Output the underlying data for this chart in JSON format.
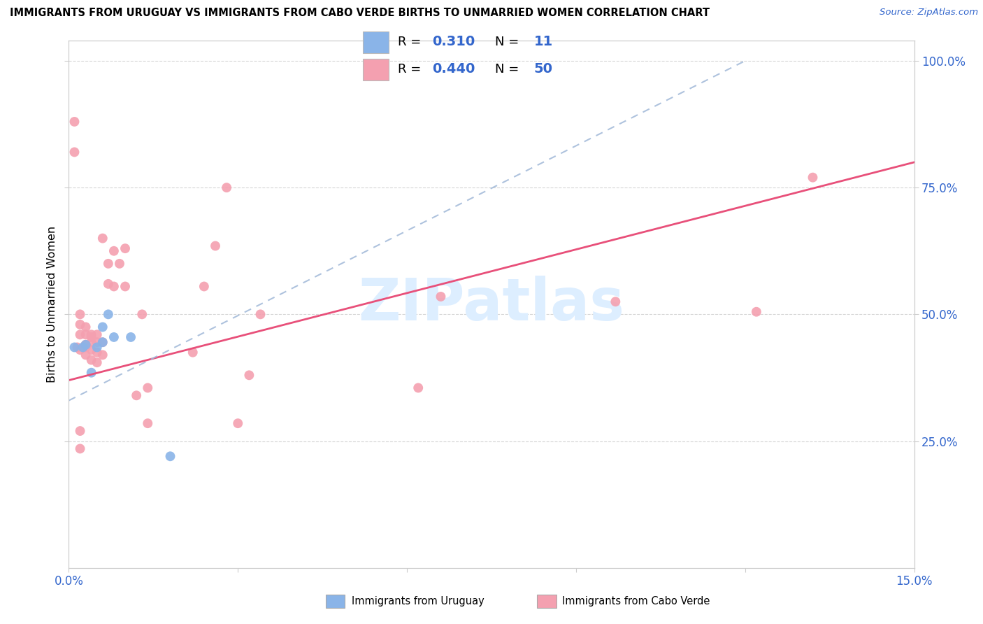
{
  "title": "IMMIGRANTS FROM URUGUAY VS IMMIGRANTS FROM CABO VERDE BIRTHS TO UNMARRIED WOMEN CORRELATION CHART",
  "source_text": "Source: ZipAtlas.com",
  "ylabel": "Births to Unmarried Women",
  "xmin": 0.0,
  "xmax": 0.15,
  "ymin": 0.0,
  "ymax": 1.04,
  "ytick_values": [
    0.25,
    0.5,
    0.75,
    1.0
  ],
  "ytick_labels": [
    "25.0%",
    "50.0%",
    "75.0%",
    "100.0%"
  ],
  "xtick_values": [
    0.0,
    0.03,
    0.06,
    0.09,
    0.12,
    0.15
  ],
  "xtick_labels": [
    "0.0%",
    "",
    "",
    "",
    "",
    "15.0%"
  ],
  "color_uruguay": "#8ab4e8",
  "color_caboverde": "#f4a0b0",
  "color_trend_caboverde": "#e8507a",
  "color_trend_uruguay": "#a0b8d8",
  "watermark_color": "#ddeeff",
  "uruguay_points": [
    [
      0.001,
      0.435
    ],
    [
      0.0025,
      0.435
    ],
    [
      0.003,
      0.44
    ],
    [
      0.004,
      0.385
    ],
    [
      0.005,
      0.435
    ],
    [
      0.006,
      0.475
    ],
    [
      0.006,
      0.445
    ],
    [
      0.007,
      0.5
    ],
    [
      0.008,
      0.455
    ],
    [
      0.011,
      0.455
    ],
    [
      0.018,
      0.22
    ]
  ],
  "caboverde_points": [
    [
      0.001,
      0.88
    ],
    [
      0.001,
      0.82
    ],
    [
      0.0015,
      0.435
    ],
    [
      0.002,
      0.43
    ],
    [
      0.002,
      0.46
    ],
    [
      0.002,
      0.48
    ],
    [
      0.002,
      0.5
    ],
    [
      0.002,
      0.27
    ],
    [
      0.002,
      0.235
    ],
    [
      0.003,
      0.42
    ],
    [
      0.003,
      0.44
    ],
    [
      0.003,
      0.46
    ],
    [
      0.003,
      0.475
    ],
    [
      0.003,
      0.435
    ],
    [
      0.003,
      0.44
    ],
    [
      0.004,
      0.41
    ],
    [
      0.004,
      0.43
    ],
    [
      0.004,
      0.445
    ],
    [
      0.004,
      0.455
    ],
    [
      0.004,
      0.46
    ],
    [
      0.005,
      0.405
    ],
    [
      0.005,
      0.425
    ],
    [
      0.005,
      0.445
    ],
    [
      0.005,
      0.46
    ],
    [
      0.006,
      0.42
    ],
    [
      0.006,
      0.445
    ],
    [
      0.006,
      0.65
    ],
    [
      0.007,
      0.56
    ],
    [
      0.007,
      0.6
    ],
    [
      0.008,
      0.625
    ],
    [
      0.008,
      0.555
    ],
    [
      0.009,
      0.6
    ],
    [
      0.01,
      0.63
    ],
    [
      0.01,
      0.555
    ],
    [
      0.012,
      0.34
    ],
    [
      0.013,
      0.5
    ],
    [
      0.014,
      0.285
    ],
    [
      0.014,
      0.355
    ],
    [
      0.022,
      0.425
    ],
    [
      0.024,
      0.555
    ],
    [
      0.026,
      0.635
    ],
    [
      0.028,
      0.75
    ],
    [
      0.03,
      0.285
    ],
    [
      0.032,
      0.38
    ],
    [
      0.034,
      0.5
    ],
    [
      0.062,
      0.355
    ],
    [
      0.066,
      0.535
    ],
    [
      0.097,
      0.525
    ],
    [
      0.122,
      0.505
    ],
    [
      0.132,
      0.77
    ]
  ],
  "trend_uru_x0": 0.0,
  "trend_uru_y0": 0.38,
  "trend_uru_x1": 0.015,
  "trend_uru_y1": 0.52,
  "trend_cv_x0": 0.0,
  "trend_cv_y0": 0.37,
  "trend_cv_x1": 0.15,
  "trend_cv_y1": 0.8
}
